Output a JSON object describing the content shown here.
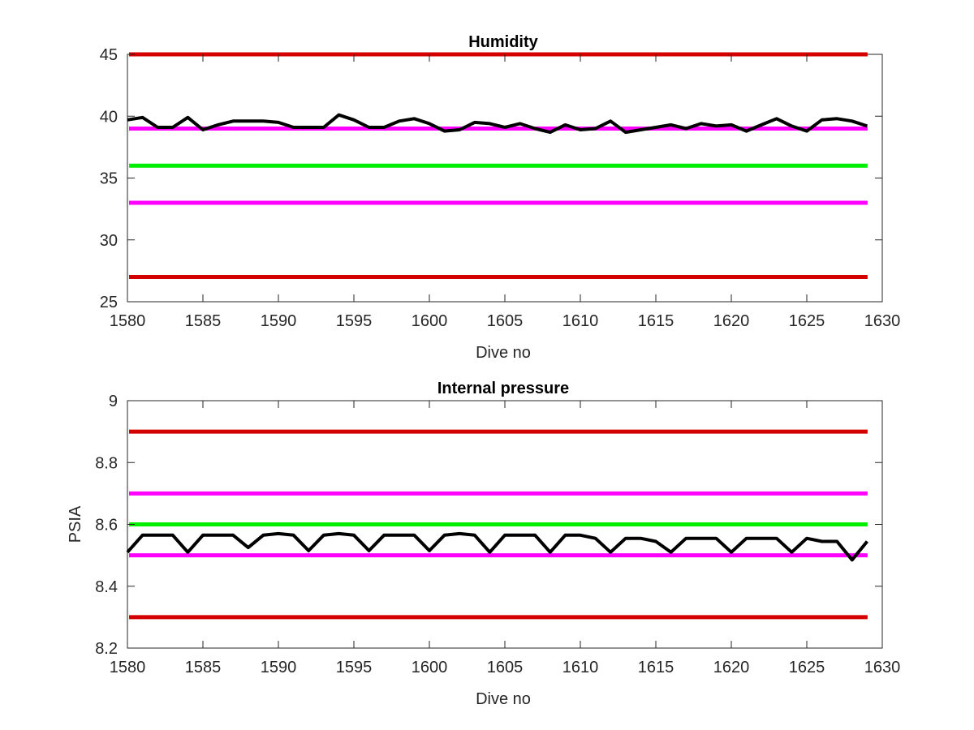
{
  "chart_data": [
    {
      "type": "line",
      "title": "Humidity",
      "xlabel": "Dive no",
      "ylabel": "",
      "xlim": [
        1580,
        1630
      ],
      "ylim": [
        25,
        45
      ],
      "xticks": [
        "1580",
        "1585",
        "1590",
        "1595",
        "1600",
        "1605",
        "1610",
        "1615",
        "1620",
        "1625",
        "1630"
      ],
      "yticks": [
        "25",
        "30",
        "35",
        "40",
        "45"
      ],
      "grid": false,
      "series": [
        {
          "color": "#000000",
          "x": [
            1580,
            1581,
            1582,
            1583,
            1584,
            1585,
            1586,
            1587,
            1588,
            1589,
            1590,
            1591,
            1592,
            1593,
            1594,
            1595,
            1596,
            1597,
            1598,
            1599,
            1600,
            1601,
            1602,
            1603,
            1604,
            1605,
            1606,
            1607,
            1608,
            1609,
            1610,
            1611,
            1612,
            1613,
            1614,
            1615,
            1616,
            1617,
            1618,
            1619,
            1620,
            1621,
            1622,
            1623,
            1624,
            1625,
            1626,
            1627,
            1628,
            1629
          ],
          "values": [
            39.7,
            39.9,
            39.1,
            39.1,
            39.9,
            38.9,
            39.3,
            39.6,
            39.6,
            39.6,
            39.5,
            39.1,
            39.1,
            39.1,
            40.1,
            39.7,
            39.1,
            39.1,
            39.6,
            39.8,
            39.4,
            38.8,
            38.9,
            39.5,
            39.4,
            39.1,
            39.4,
            39.0,
            38.7,
            39.3,
            38.9,
            39.0,
            39.6,
            38.7,
            38.9,
            39.1,
            39.3,
            39.0,
            39.4,
            39.2,
            39.3,
            38.8,
            39.3,
            39.8,
            39.2,
            38.8,
            39.7,
            39.8,
            39.6,
            39.2
          ]
        }
      ],
      "reference_lines": [
        {
          "y": 45,
          "color": "#d40000"
        },
        {
          "y": 39,
          "color": "#ff00ff"
        },
        {
          "y": 36,
          "color": "#00ee00"
        },
        {
          "y": 33,
          "color": "#ff00ff"
        },
        {
          "y": 27,
          "color": "#d40000"
        }
      ]
    },
    {
      "type": "line",
      "title": "Internal pressure",
      "xlabel": "Dive no",
      "ylabel": "PSIA",
      "xlim": [
        1580,
        1630
      ],
      "ylim": [
        8.2,
        9
      ],
      "xticks": [
        "1580",
        "1585",
        "1590",
        "1595",
        "1600",
        "1605",
        "1610",
        "1615",
        "1620",
        "1625",
        "1630"
      ],
      "yticks": [
        "8.2",
        "8.4",
        "8.6",
        "8.8",
        "9"
      ],
      "grid": false,
      "series": [
        {
          "color": "#000000",
          "x": [
            1580,
            1581,
            1582,
            1583,
            1584,
            1585,
            1586,
            1587,
            1588,
            1589,
            1590,
            1591,
            1592,
            1593,
            1594,
            1595,
            1596,
            1597,
            1598,
            1599,
            1600,
            1601,
            1602,
            1603,
            1604,
            1605,
            1606,
            1607,
            1608,
            1609,
            1610,
            1611,
            1612,
            1613,
            1614,
            1615,
            1616,
            1617,
            1618,
            1619,
            1620,
            1621,
            1622,
            1623,
            1624,
            1625,
            1626,
            1627,
            1628,
            1629
          ],
          "values": [
            8.51,
            8.565,
            8.565,
            8.565,
            8.51,
            8.565,
            8.565,
            8.565,
            8.525,
            8.565,
            8.57,
            8.565,
            8.515,
            8.565,
            8.57,
            8.565,
            8.515,
            8.565,
            8.565,
            8.565,
            8.515,
            8.565,
            8.57,
            8.565,
            8.51,
            8.565,
            8.565,
            8.565,
            8.51,
            8.565,
            8.565,
            8.555,
            8.51,
            8.555,
            8.555,
            8.545,
            8.51,
            8.555,
            8.555,
            8.555,
            8.51,
            8.555,
            8.555,
            8.555,
            8.51,
            8.555,
            8.545,
            8.545,
            8.485,
            8.545
          ]
        }
      ],
      "reference_lines": [
        {
          "y": 8.9,
          "color": "#d40000"
        },
        {
          "y": 8.7,
          "color": "#ff00ff"
        },
        {
          "y": 8.6,
          "color": "#00ee00"
        },
        {
          "y": 8.5,
          "color": "#ff00ff"
        },
        {
          "y": 8.3,
          "color": "#d40000"
        }
      ]
    }
  ]
}
